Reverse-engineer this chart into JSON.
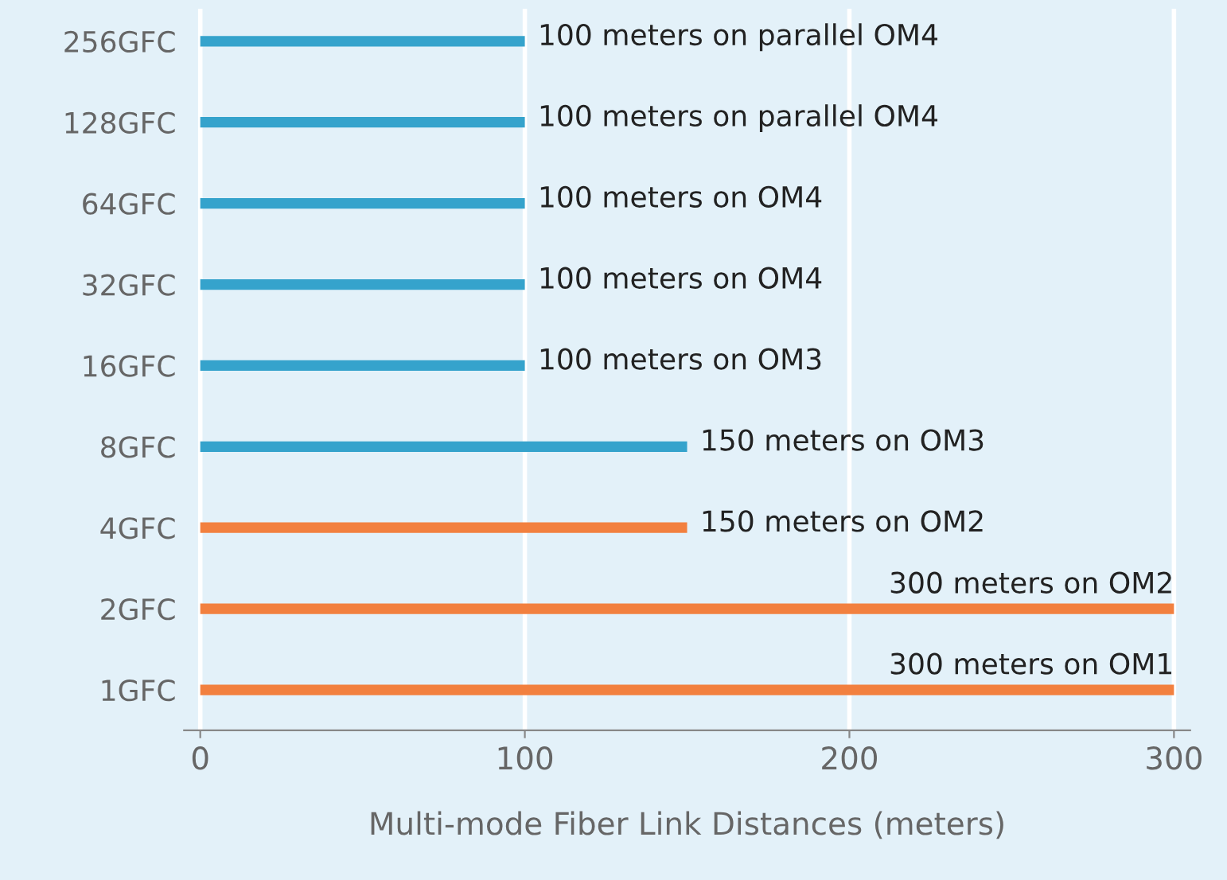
{
  "chart_data": {
    "type": "bar",
    "orientation": "horizontal",
    "categories": [
      "256GFC",
      "128GFC",
      "64GFC",
      "32GFC",
      "16GFC",
      "8GFC",
      "4GFC",
      "2GFC",
      "1GFC"
    ],
    "values": [
      100,
      100,
      100,
      100,
      100,
      150,
      150,
      300,
      300
    ],
    "colors": [
      "#35a3cc",
      "#35a3cc",
      "#35a3cc",
      "#35a3cc",
      "#35a3cc",
      "#35a3cc",
      "#f2803f",
      "#f2803f",
      "#f2803f"
    ],
    "value_labels": [
      "100 meters on parallel OM4",
      "100 meters on parallel OM4",
      "100 meters on OM4",
      "100 meters on OM4",
      "100 meters on OM3",
      "150 meters on OM3",
      "150 meters on OM2",
      "300 meters on OM2",
      "300 meters on OM1"
    ],
    "xlabel": "Multi-mode Fiber Link Distances (meters)",
    "xlim": [
      -5,
      305
    ],
    "xticks": [
      0,
      100,
      200,
      300
    ],
    "grid": "x"
  }
}
